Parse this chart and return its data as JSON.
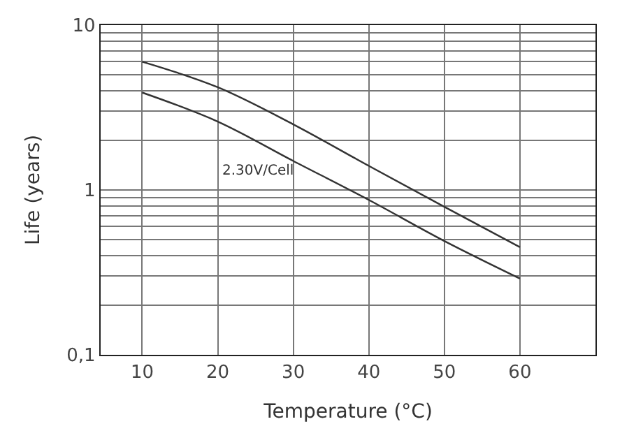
{
  "chart_data": {
    "type": "line",
    "xlabel": "Temperature (°C)",
    "ylabel": "Life (years)",
    "x": [
      10,
      20,
      30,
      40,
      50,
      60
    ],
    "series": [
      {
        "color": "#333333",
        "values": [
          6.0,
          4.2,
          2.5,
          1.4,
          0.79,
          0.45
        ]
      },
      {
        "color": "#333333",
        "values": [
          3.9,
          2.6,
          1.5,
          0.87,
          0.49,
          0.29
        ]
      }
    ],
    "xlim": [
      4.5,
      70
    ],
    "xticks": [
      10,
      20,
      30,
      40,
      50,
      60
    ],
    "ylim": [
      0.1,
      10
    ],
    "yticks": [
      {
        "value": 0.1,
        "label": "0,1"
      },
      {
        "value": 0.2,
        "label": null
      },
      {
        "value": 0.3,
        "label": null
      },
      {
        "value": 0.4,
        "label": null
      },
      {
        "value": 0.5,
        "label": null
      },
      {
        "value": 0.6,
        "label": null
      },
      {
        "value": 0.7,
        "label": null
      },
      {
        "value": 0.8,
        "label": null
      },
      {
        "value": 0.9,
        "label": null
      },
      1,
      {
        "value": 2,
        "label": null
      },
      {
        "value": 3,
        "label": null
      },
      {
        "value": 4,
        "label": null
      },
      {
        "value": 5,
        "label": null
      },
      {
        "value": 6,
        "label": null
      },
      {
        "value": 7,
        "label": null
      },
      {
        "value": 8,
        "label": null
      },
      {
        "value": 9,
        "label": null
      },
      10
    ],
    "log": "y",
    "grid": true,
    "marker": "none",
    "line_style": "solid",
    "annotations": [
      "2.30V/Cell"
    ]
  }
}
